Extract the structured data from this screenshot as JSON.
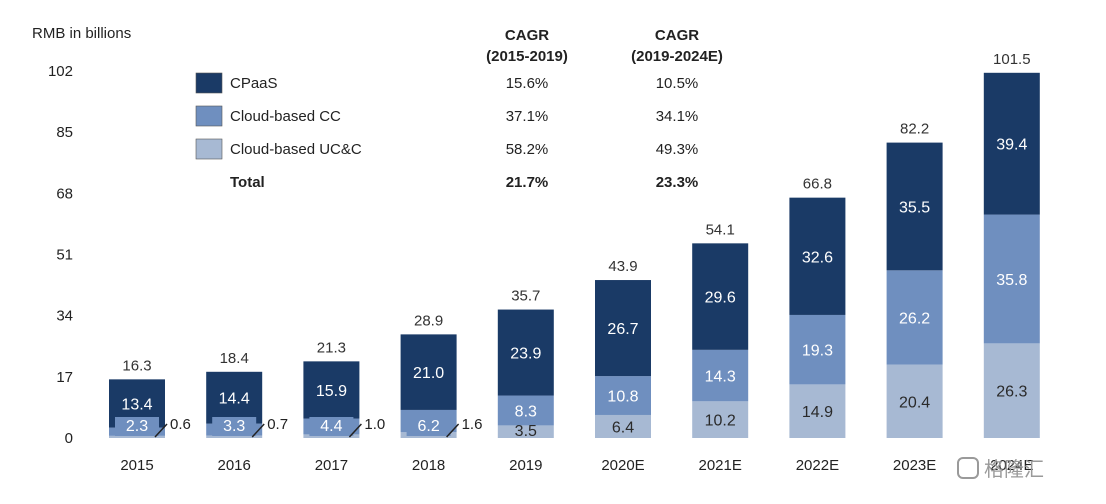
{
  "chart_data": {
    "type": "bar",
    "stacked": true,
    "ylabel": "RMB in billions",
    "ylim": [
      0,
      102
    ],
    "yticks": [
      0,
      17,
      34,
      51,
      68,
      85,
      102
    ],
    "categories": [
      "2015",
      "2016",
      "2017",
      "2018",
      "2019",
      "2020E",
      "2021E",
      "2022E",
      "2023E",
      "2024E"
    ],
    "category_display": [
      "2015",
      "2016",
      "2017",
      "2018",
      "2019",
      "2020E",
      "2021E",
      "2022E",
      "2023E",
      "2024E"
    ],
    "series": [
      {
        "name": "Cloud-based UC&C",
        "color": "#a7b9d3",
        "values": [
          0.6,
          0.7,
          1.0,
          1.6,
          3.5,
          6.4,
          10.2,
          14.9,
          20.4,
          26.3
        ]
      },
      {
        "name": "Cloud-based CC",
        "color": "#6f8fbf",
        "values": [
          2.3,
          3.3,
          4.4,
          6.2,
          8.3,
          10.8,
          14.3,
          19.3,
          26.2,
          35.8
        ]
      },
      {
        "name": "CPaaS",
        "color": "#1a3a66",
        "values": [
          13.4,
          14.4,
          15.9,
          21.0,
          23.9,
          26.7,
          29.6,
          32.6,
          35.5,
          39.4
        ]
      }
    ],
    "totals": [
      16.3,
      18.4,
      21.3,
      28.9,
      35.7,
      43.9,
      54.1,
      66.8,
      82.2,
      101.5
    ],
    "cagr_table": {
      "headers": [
        "CAGR\n(2015-2019)",
        "CAGR\n(2019-2024E)"
      ],
      "header_lines": [
        [
          "CAGR",
          "(2015-2019)"
        ],
        [
          "CAGR",
          "(2019-2024E)"
        ]
      ],
      "rows": [
        {
          "label": "CPaaS",
          "color": "#1a3a66",
          "v1": "15.6%",
          "v2": "10.5%",
          "bold": false
        },
        {
          "label": "Cloud-based CC",
          "color": "#6f8fbf",
          "v1": "37.1%",
          "v2": "34.1%",
          "bold": false
        },
        {
          "label": "Cloud-based UC&C",
          "color": "#a7b9d3",
          "v1": "58.2%",
          "v2": "49.3%",
          "bold": false
        },
        {
          "label": "Total",
          "color": "",
          "v1": "21.7%",
          "v2": "23.3%",
          "bold": true
        }
      ]
    }
  },
  "watermark": "格隆汇"
}
